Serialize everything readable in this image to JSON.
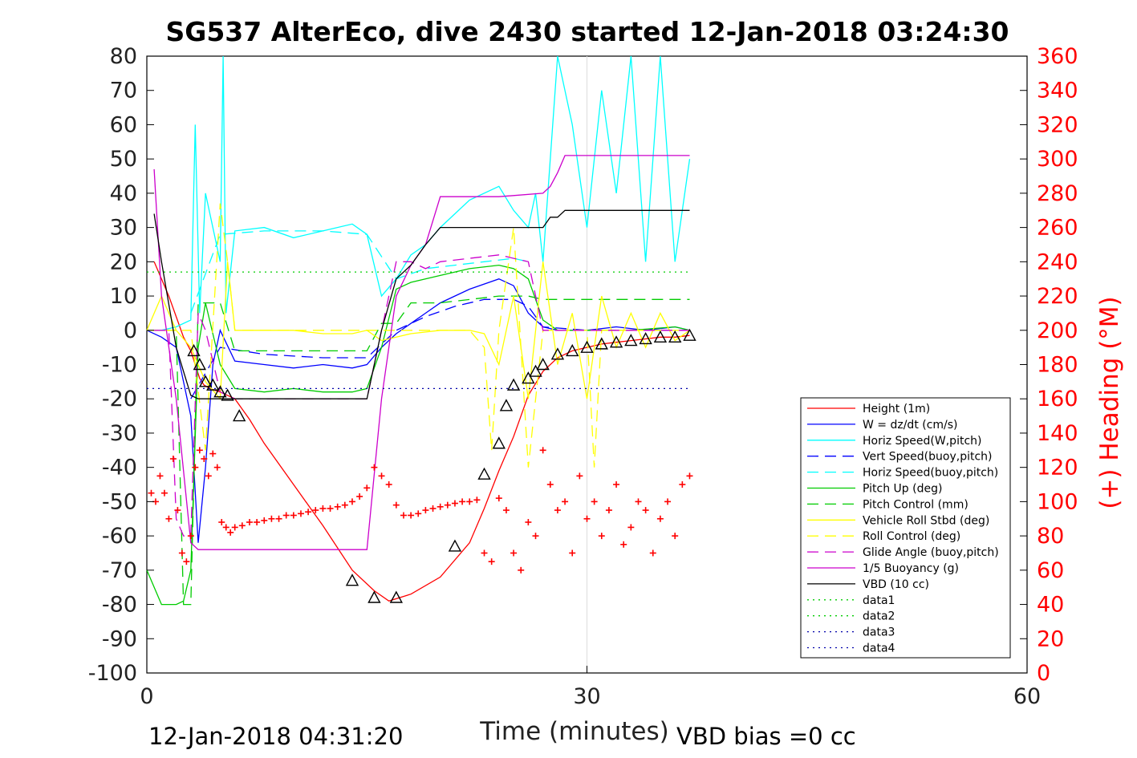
{
  "chart_data": {
    "type": "line",
    "title": "SG537 AlterEco, dive 2430 started 12-Jan-2018 03:24:30",
    "xlabel": "Time (minutes)",
    "ylabel": "",
    "y2label": "(+) Heading (°M)",
    "xlim": [
      0,
      60
    ],
    "ylim": [
      -100,
      80
    ],
    "y2lim": [
      0,
      360
    ],
    "x_ticks": [
      "0",
      "30",
      "60"
    ],
    "y_ticks": [
      "80",
      "70",
      "60",
      "50",
      "40",
      "30",
      "20",
      "10",
      "0",
      "-10",
      "-20",
      "-30",
      "-40",
      "-50",
      "-60",
      "-70",
      "-80",
      "-90",
      "-100"
    ],
    "y2_ticks": [
      "360",
      "340",
      "320",
      "300",
      "280",
      "260",
      "240",
      "220",
      "200",
      "180",
      "160",
      "140",
      "120",
      "100",
      "80",
      "60",
      "40",
      "20",
      "0"
    ],
    "grid": "x=30 only",
    "legend_position": "bottom-right",
    "footer_left": "12-Jan-2018 04:31:20",
    "footer_right": "VBD bias =0 cc",
    "legend": [
      {
        "label": "Height (1m)",
        "color": "#ff0000",
        "style": "solid"
      },
      {
        "label": "W = dz/dt (cm/s)",
        "color": "#0000ff",
        "style": "solid"
      },
      {
        "label": "Horiz Speed(W,pitch)",
        "color": "#00ffff",
        "style": "solid"
      },
      {
        "label": "Vert Speed(buoy,pitch)",
        "color": "#0000ff",
        "style": "dashed"
      },
      {
        "label": "Horiz Speed(buoy,pitch)",
        "color": "#00ffff",
        "style": "dashed"
      },
      {
        "label": "Pitch Up (deg)",
        "color": "#00cc00",
        "style": "solid"
      },
      {
        "label": "Pitch Control (mm)",
        "color": "#00cc00",
        "style": "dashed"
      },
      {
        "label": "Vehicle Roll Stbd (deg)",
        "color": "#ffff00",
        "style": "solid"
      },
      {
        "label": "Roll Control (deg)",
        "color": "#ffff00",
        "style": "dashed"
      },
      {
        "label": "Glide Angle (buoy,pitch)",
        "color": "#cc00cc",
        "style": "dashed"
      },
      {
        "label": "1/5 Buoyancy (g)",
        "color": "#cc00cc",
        "style": "solid"
      },
      {
        "label": "VBD (10 cc)",
        "color": "#000000",
        "style": "solid"
      },
      {
        "label": "data1",
        "color": "#00cc00",
        "style": "dotted"
      },
      {
        "label": "data2",
        "color": "#00cc00",
        "style": "dotted"
      },
      {
        "label": "data3",
        "color": "#0000aa",
        "style": "dotted"
      },
      {
        "label": "data4",
        "color": "#0000aa",
        "style": "dotted"
      }
    ],
    "series": [
      {
        "name": "Height (1m)",
        "x": [
          0.5,
          1.5,
          2.5,
          3.0,
          3.3,
          3.6,
          3.9,
          4.3,
          5.0,
          6.0,
          7.0,
          8.0,
          10,
          12,
          14,
          15.5,
          16.5,
          18,
          20,
          22,
          23,
          24,
          25,
          26,
          27,
          28,
          29,
          30,
          31,
          32,
          33,
          34,
          35,
          36,
          37
        ],
        "y": [
          20,
          10,
          -2,
          -6,
          -10,
          -14,
          -16,
          -17,
          -18,
          -20,
          -26,
          -33,
          -45,
          -57,
          -70,
          -76,
          -79,
          -77,
          -72,
          -62,
          -52,
          -41,
          -31,
          -19,
          -12,
          -8,
          -6,
          -5,
          -4,
          -3.5,
          -3,
          -2.5,
          -2,
          -2,
          -1.5
        ]
      },
      {
        "name": "W = dz/dt (cm/s)",
        "x": [
          0,
          1,
          2,
          3,
          3.5,
          4,
          4.5,
          5,
          6,
          8,
          10,
          12,
          14,
          15,
          16,
          17,
          18,
          19,
          20,
          22,
          24,
          25,
          26,
          27,
          28,
          30,
          32,
          34,
          36,
          37
        ],
        "y": [
          0,
          -2,
          -5,
          -25,
          -62,
          -40,
          -10,
          0,
          -9,
          -10,
          -11,
          -10,
          -11,
          -10,
          -5,
          -1,
          2,
          5,
          8,
          12,
          15,
          13,
          5,
          1,
          0,
          0,
          1,
          0,
          1,
          0
        ]
      },
      {
        "name": "Horiz Speed(W,pitch)",
        "x": [
          0,
          1,
          2,
          3,
          3.3,
          3.6,
          4,
          5,
          5.2,
          5.4,
          6,
          8,
          10,
          12,
          14,
          15,
          16,
          17,
          18,
          19,
          20,
          22,
          24,
          25,
          26,
          26.5,
          27,
          28,
          29,
          30,
          31,
          32,
          33,
          34,
          35,
          36,
          37
        ],
        "y": [
          0,
          0,
          1,
          3,
          60,
          5,
          40,
          20,
          90,
          5,
          29,
          30,
          27,
          29,
          31,
          28,
          10,
          15,
          22,
          25,
          30,
          38,
          42,
          35,
          30,
          40,
          20,
          80,
          60,
          30,
          70,
          40,
          80,
          20,
          80,
          20,
          50
        ]
      },
      {
        "name": "Vert Speed(buoy,pitch)",
        "x": [
          3,
          5,
          8,
          12,
          15,
          17,
          19,
          21,
          23,
          25,
          26,
          27,
          30,
          33,
          36,
          37
        ],
        "y": [
          -20,
          -5,
          -7,
          -8,
          -8,
          0,
          4,
          7,
          9,
          9,
          7,
          1,
          0,
          0,
          0,
          0
        ]
      },
      {
        "name": "Horiz Speed(buoy,pitch)",
        "x": [
          3,
          5,
          8,
          12,
          15,
          17,
          19,
          21,
          23,
          25,
          26
        ],
        "y": [
          5,
          28,
          29,
          29,
          28,
          15,
          18,
          19,
          20,
          21,
          20
        ]
      },
      {
        "name": "Pitch Up (deg)",
        "x": [
          0,
          1,
          2,
          2.5,
          3,
          3.5,
          4,
          5,
          6,
          8,
          10,
          12,
          14,
          15,
          16,
          17,
          18,
          20,
          22,
          24,
          25,
          26,
          27,
          28,
          30,
          33,
          36,
          37
        ],
        "y": [
          -70,
          -80,
          -80,
          -79,
          -70,
          -5,
          8,
          -10,
          -17,
          -18,
          -17,
          -18,
          -18,
          -17,
          -5,
          12,
          14,
          16,
          18,
          19,
          18,
          15,
          3,
          0,
          0,
          0,
          1,
          0
        ]
      },
      {
        "name": "Pitch Control (mm)",
        "x": [
          0,
          2,
          2.5,
          3,
          3.5,
          5,
          6,
          15,
          16,
          17,
          18,
          20,
          24,
          26,
          27,
          28,
          37
        ],
        "y": [
          0,
          0,
          -80,
          -80,
          8,
          8,
          -6,
          -6,
          2,
          2,
          8,
          8,
          10,
          10,
          9,
          9,
          9
        ]
      },
      {
        "name": "Vehicle Roll Stbd (deg)",
        "x": [
          0,
          1,
          2,
          3,
          4,
          5,
          5.5,
          6,
          8,
          10,
          12,
          14,
          15,
          16,
          18,
          20,
          22,
          23,
          24,
          25,
          26,
          27,
          28,
          29,
          30,
          31,
          32,
          33,
          34,
          35,
          36,
          37
        ],
        "y": [
          0,
          10,
          0,
          -5,
          -15,
          -20,
          20,
          0,
          0,
          0,
          -1,
          -1,
          0,
          -3,
          -1,
          0,
          0,
          -1,
          -10,
          10,
          -20,
          20,
          -10,
          5,
          -20,
          10,
          -5,
          5,
          -5,
          5,
          -3,
          0
        ]
      },
      {
        "name": "Roll Control (deg)",
        "x": [
          0,
          3,
          4,
          5,
          5.5,
          6,
          20,
          22,
          23,
          23.5,
          24,
          25,
          26,
          27,
          28,
          30,
          30.5,
          31,
          32,
          37
        ],
        "y": [
          0,
          0,
          -35,
          37,
          20,
          0,
          0,
          0,
          -5,
          -35,
          0,
          30,
          -40,
          0,
          0,
          0,
          -40,
          0,
          0,
          0
        ]
      },
      {
        "name": "Glide Angle (buoy,pitch)",
        "x": [
          0.5,
          1.5,
          2,
          2.5,
          3,
          3.5,
          4,
          5,
          6,
          15,
          16,
          17,
          18,
          19,
          20,
          24,
          26,
          27,
          28,
          30,
          33,
          36,
          37
        ],
        "y": [
          0,
          0,
          -55,
          -60,
          -60,
          5,
          0,
          -18,
          -20,
          -20,
          0,
          20,
          20,
          18,
          20,
          22,
          20,
          0,
          0,
          0,
          0,
          0,
          0
        ]
      },
      {
        "name": "1/5 Buoyancy (g)",
        "x": [
          0.5,
          1,
          2,
          3,
          3.5,
          5,
          10,
          14,
          15,
          16,
          17,
          18,
          19,
          20,
          24,
          27,
          27.5,
          28,
          28.5,
          30,
          35,
          37
        ],
        "y": [
          47,
          10,
          -20,
          -62,
          -64,
          -64,
          -64,
          -64,
          -64,
          -20,
          10,
          19,
          25,
          39,
          39,
          40,
          42,
          46,
          51,
          51,
          51,
          51
        ]
      },
      {
        "name": "VBD (10 cc)",
        "x": [
          0.5,
          1,
          2,
          3,
          3.5,
          5,
          10,
          14,
          15,
          16,
          17,
          18,
          19,
          20,
          27,
          27.5,
          28,
          28.5,
          30,
          35,
          37
        ],
        "y": [
          34,
          20,
          -5,
          -19,
          -20,
          -20,
          -20,
          -20,
          -20,
          0,
          15,
          19,
          25,
          30,
          30,
          33,
          33,
          35,
          35,
          35,
          35
        ]
      },
      {
        "name": "data1",
        "x": [
          0,
          37
        ],
        "y": [
          17,
          17
        ]
      },
      {
        "name": "data4",
        "x": [
          0,
          37
        ],
        "y": [
          -17,
          -17
        ]
      }
    ],
    "heading_points": {
      "x": [
        0.3,
        0.6,
        0.9,
        1.2,
        1.5,
        1.8,
        2.1,
        2.4,
        2.7,
        3.0,
        3.3,
        3.6,
        3.9,
        4.2,
        4.5,
        4.8,
        5.1,
        5.4,
        5.7,
        6.0,
        6.5,
        7,
        7.5,
        8,
        8.5,
        9,
        9.5,
        10,
        10.5,
        11,
        11.5,
        12,
        12.5,
        13,
        13.5,
        14,
        14.5,
        15,
        15.5,
        16,
        16.5,
        17,
        17.5,
        18,
        18.5,
        19,
        19.5,
        20,
        20.5,
        21,
        21.5,
        22,
        22.5,
        23,
        23.5,
        24,
        24.5,
        25,
        25.5,
        26,
        26.5,
        27,
        27.5,
        28,
        28.5,
        29,
        29.5,
        30,
        30.5,
        31,
        31.5,
        32,
        32.5,
        33,
        33.5,
        34,
        34.5,
        35,
        35.5,
        36,
        36.5,
        37
      ],
      "y": [
        105,
        100,
        115,
        105,
        90,
        125,
        95,
        70,
        65,
        80,
        120,
        130,
        125,
        115,
        128,
        120,
        88,
        85,
        82,
        85,
        86,
        88,
        88,
        89,
        90,
        90,
        92,
        92,
        93,
        94,
        95,
        96,
        96,
        97,
        98,
        100,
        103,
        108,
        120,
        115,
        110,
        98,
        92,
        92,
        93,
        95,
        96,
        97,
        98,
        99,
        100,
        100,
        101,
        70,
        65,
        102,
        95,
        70,
        60,
        88,
        80,
        130,
        110,
        95,
        100,
        70,
        115,
        90,
        100,
        80,
        95,
        110,
        75,
        85,
        100,
        95,
        70,
        90,
        100,
        80,
        110,
        115
      ]
    },
    "triangles": {
      "x": [
        3.2,
        3.6,
        4.0,
        4.5,
        5.0,
        5.5,
        6.3,
        14,
        15.5,
        17,
        21,
        23,
        24,
        24.5,
        25,
        26,
        26.5,
        27,
        28,
        29,
        30,
        31,
        32,
        33,
        34,
        35,
        36,
        37
      ],
      "y": [
        -6,
        -10,
        -15,
        -16,
        -18,
        -19,
        -25,
        -73,
        -78,
        -78,
        -63,
        -42,
        -33,
        -22,
        -16,
        -14,
        -12,
        -10,
        -7,
        -6,
        -5,
        -4,
        -3.5,
        -3,
        -2.5,
        -2,
        -2,
        -1.5
      ]
    }
  }
}
